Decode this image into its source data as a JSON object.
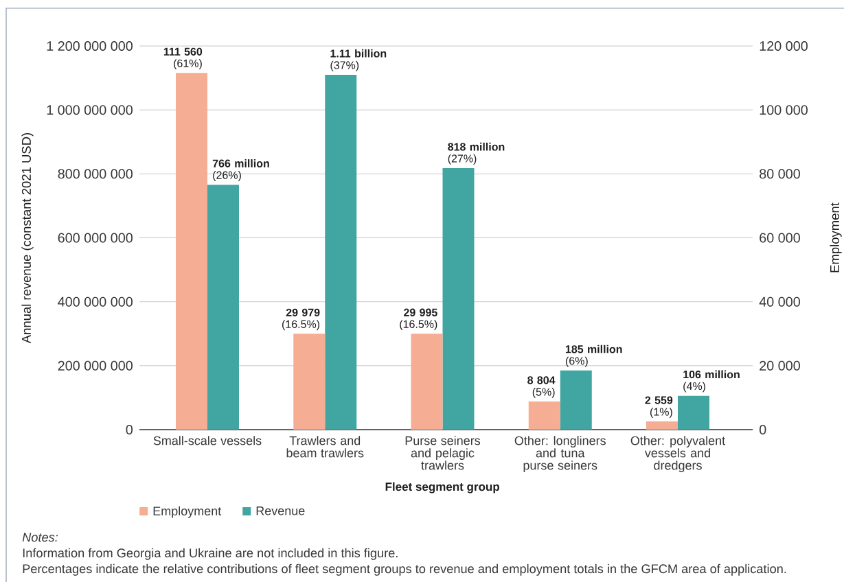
{
  "chart_data": {
    "type": "bar",
    "xlabel": "Fleet segment group",
    "ylabel": "Annual revenue (constant 2021 USD)",
    "y2label": "Employment",
    "categories": [
      "Small-scale vessels",
      "Trawlers and beam trawlers",
      "Purse seiners and pelagic trawlers",
      "Other: longliners and tuna purse seiners",
      "Other: polyvalent vessels and dredgers"
    ],
    "series": [
      {
        "name": "Employment",
        "color": "#f5ad93",
        "axis": "y2",
        "values": [
          111560,
          29979,
          29995,
          8804,
          2559
        ],
        "value_labels": [
          "**111 560** (61%)",
          "**29 979** (16.5%)",
          "**29 995** (16.5%)",
          "**8 804** (5%)",
          "**2 559** (1%)"
        ]
      },
      {
        "name": "Revenue",
        "color": "#41a5a1",
        "axis": "y",
        "values": [
          766000000,
          1110000000,
          818000000,
          185000000,
          106000000
        ],
        "value_labels": [
          "**766 million** (26%)",
          "**1.11 billion** (37%)",
          "**818 million** (27%)",
          "**185 million** (6%)",
          "**106 million** (4%)"
        ]
      }
    ],
    "ylim": [
      0,
      1200000000
    ],
    "yticks": [
      0,
      {
        "value": 200000000,
        "label": "200 000 000"
      },
      {
        "value": 400000000,
        "label": "400 000 000"
      },
      {
        "value": 600000000,
        "label": "600 000 000"
      },
      {
        "value": 800000000,
        "label": "800 000 000"
      },
      {
        "value": 1000000000,
        "label": "1 000 000 000"
      },
      {
        "value": 1200000000,
        "label": "1 200 000 000"
      }
    ],
    "y2lim": [
      0,
      120000
    ],
    "y2ticks": [
      0,
      {
        "value": 20000,
        "label": "20 000"
      },
      {
        "value": 40000,
        "label": "40 000"
      },
      {
        "value": 60000,
        "label": "60 000"
      },
      {
        "value": 80000,
        "label": "80 000"
      },
      {
        "value": 100000,
        "label": "100 000"
      },
      {
        "value": 120000,
        "label": "120 000"
      }
    ],
    "grid": "y",
    "legend": "bottom",
    "annotations": [
      "Notes:",
      "Information from Georgia and Ukraine are not included in this figure.",
      "Percentages indicate the relative contributions of fleet segment groups to revenue and employment totals in the GFCM area of application."
    ]
  }
}
